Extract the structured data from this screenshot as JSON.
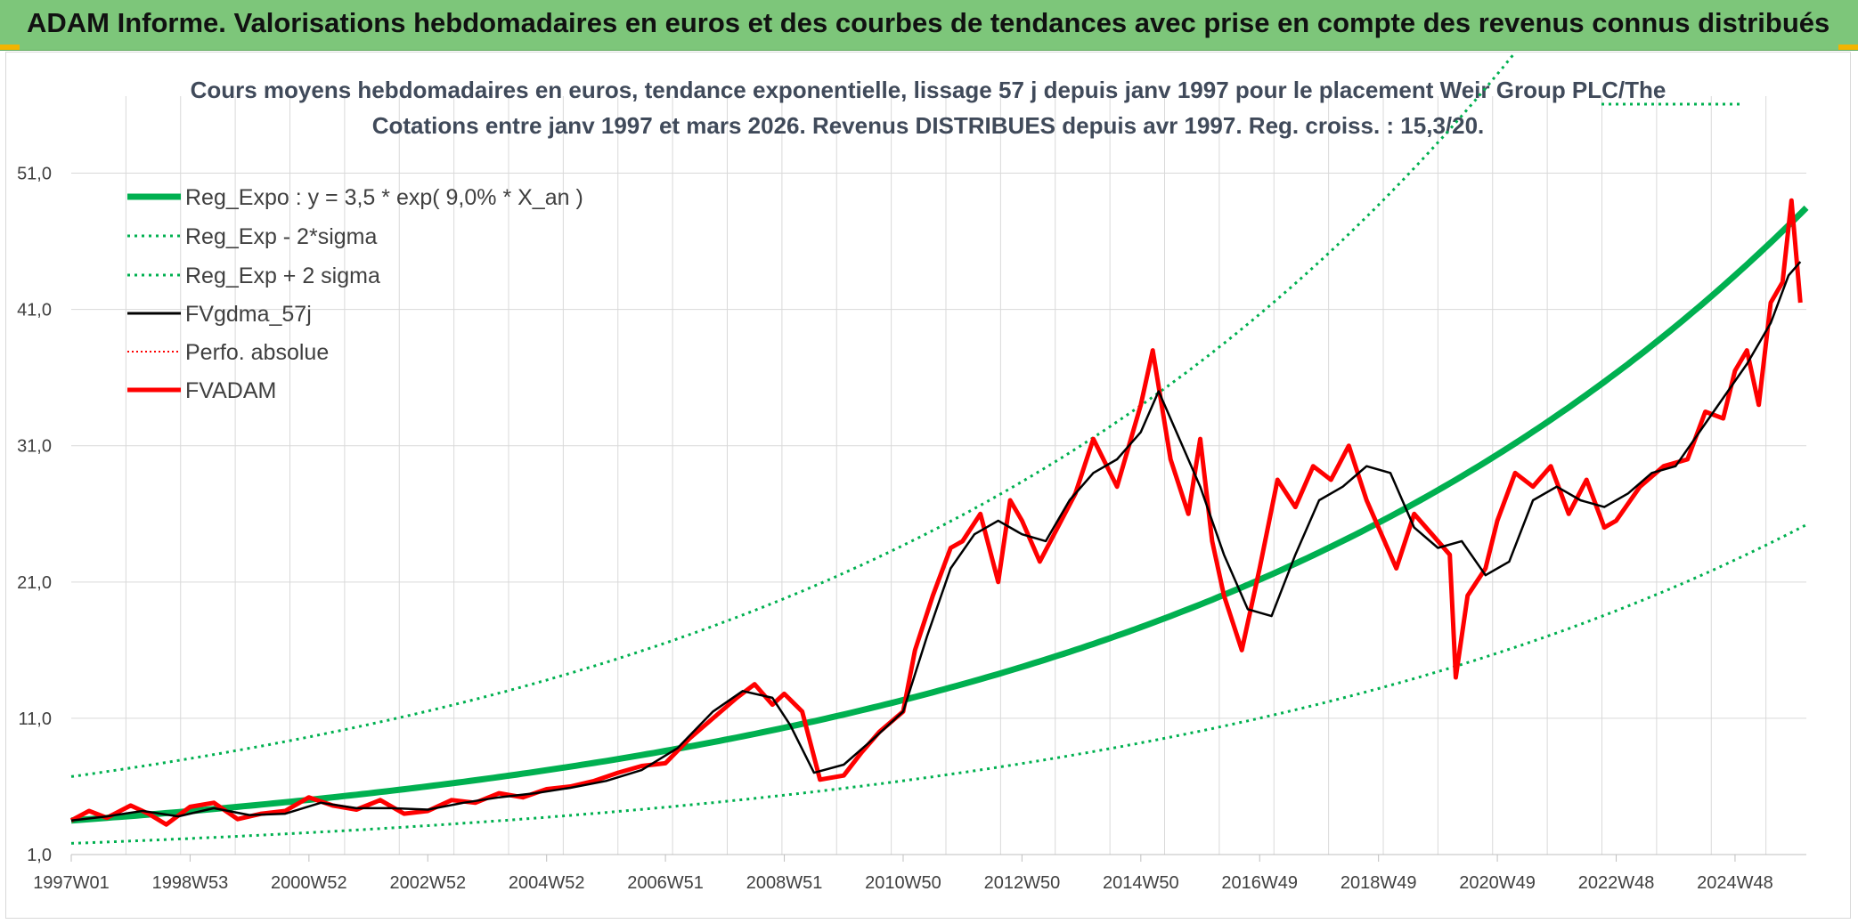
{
  "banner": {
    "title": "ADAM Informe. Valorisations hebdomadaires en euros et des courbes de tendances avec prise en compte des revenus connus distribués"
  },
  "colors": {
    "banner": "#7dc67a",
    "reg_green": "#00b050",
    "series_red": "#ff0000",
    "series_black": "#000000",
    "grid": "#d9d9d9"
  },
  "chart_data": {
    "type": "line",
    "title_line1": "Cours moyens hebdomadaires en euros, tendance exponentielle, lissage 57 j depuis janv 1997 pour le placement Weir Group PLC/The",
    "title_line2": "Cotations entre janv 1997 et mars 2026. Revenus DISTRIBUES depuis avr 1997. Reg. croiss. : 15,3/20.",
    "xlabel": "",
    "ylabel": "",
    "x_range": [
      1997.0,
      2026.2
    ],
    "ylim": [
      1.0,
      56.0
    ],
    "y_ticks": [
      "1,0",
      "11,0",
      "21,0",
      "31,0",
      "41,0",
      "51,0"
    ],
    "y_tick_values": [
      1,
      11,
      21,
      31,
      41,
      51
    ],
    "x_tick_labels": [
      "1997W01",
      "1998W53",
      "2000W52",
      "2002W52",
      "2004W52",
      "2006W51",
      "2008W51",
      "2010W50",
      "2012W50",
      "2014W50",
      "2016W49",
      "2018W49",
      "2020W49",
      "2022W48",
      "2024W48"
    ],
    "x_tick_years": [
      1997.0,
      1999.0,
      2001.0,
      2003.0,
      2005.0,
      2007.0,
      2009.0,
      2011.0,
      2013.0,
      2015.0,
      2017.0,
      2019.0,
      2021.0,
      2023.0,
      2025.0
    ],
    "legend": [
      {
        "label": "Reg_Expo : y = 3,5 * exp( 9,0% *  X_an )",
        "style": "solid-thick-green"
      },
      {
        "label": "Reg_Exp - 2*sigma",
        "style": "dotted-green"
      },
      {
        "label": "Reg_Exp + 2 sigma",
        "style": "dotted-green"
      },
      {
        "label": "FVgdma_57j",
        "style": "solid-black"
      },
      {
        "label": "Perfo. absolue",
        "style": "dotted-red"
      },
      {
        "label": "FVADAM",
        "style": "solid-thick-red"
      }
    ],
    "regression": {
      "a": 3.5,
      "b": 0.09,
      "lower_factor": 0.52,
      "upper_factor": 1.92
    },
    "series": [
      {
        "name": "FVADAM",
        "x": [
          1997.0,
          1997.3,
          1997.6,
          1998.0,
          1998.3,
          1998.6,
          1999.0,
          1999.4,
          1999.8,
          2000.2,
          2000.6,
          2001.0,
          2001.4,
          2001.8,
          2002.2,
          2002.6,
          2003.0,
          2003.4,
          2003.8,
          2004.2,
          2004.6,
          2005.0,
          2005.4,
          2005.8,
          2006.2,
          2006.6,
          2007.0,
          2007.4,
          2007.8,
          2008.2,
          2008.5,
          2008.8,
          2009.0,
          2009.3,
          2009.6,
          2010.0,
          2010.3,
          2010.6,
          2011.0,
          2011.2,
          2011.5,
          2011.8,
          2012.0,
          2012.3,
          2012.6,
          2012.8,
          2013.0,
          2013.3,
          2013.6,
          2013.9,
          2014.2,
          2014.6,
          2014.8,
          2015.0,
          2015.2,
          2015.5,
          2015.8,
          2016.0,
          2016.2,
          2016.4,
          2016.7,
          2017.0,
          2017.3,
          2017.6,
          2017.9,
          2018.2,
          2018.5,
          2018.8,
          2019.0,
          2019.3,
          2019.6,
          2019.9,
          2020.2,
          2020.3,
          2020.5,
          2020.8,
          2021.0,
          2021.3,
          2021.6,
          2021.9,
          2022.2,
          2022.5,
          2022.8,
          2023.0,
          2023.4,
          2023.8,
          2024.2,
          2024.5,
          2024.8,
          2025.0,
          2025.2,
          2025.4,
          2025.6,
          2025.8,
          2025.95,
          2026.1
        ],
        "values": [
          3.5,
          4.2,
          3.7,
          4.6,
          4.0,
          3.2,
          4.5,
          4.8,
          3.6,
          4.0,
          4.2,
          5.2,
          4.6,
          4.3,
          5.0,
          4.0,
          4.2,
          5.0,
          4.8,
          5.5,
          5.2,
          5.8,
          6.0,
          6.4,
          7.0,
          7.5,
          7.7,
          9.5,
          11.0,
          12.5,
          13.5,
          12.0,
          12.8,
          11.5,
          6.5,
          6.8,
          8.5,
          10.0,
          11.5,
          16.0,
          20.0,
          23.5,
          24.0,
          26.0,
          21.0,
          27.0,
          25.5,
          22.5,
          25.0,
          27.5,
          31.5,
          28.0,
          31.0,
          34.0,
          38.0,
          30.0,
          26.0,
          31.5,
          24.0,
          20.0,
          16.0,
          22.0,
          28.5,
          26.5,
          29.5,
          28.5,
          31.0,
          27.0,
          25.0,
          22.0,
          26.0,
          24.5,
          23.0,
          14.0,
          20.0,
          22.0,
          25.5,
          29.0,
          28.0,
          29.5,
          26.0,
          28.5,
          25.0,
          25.5,
          28.0,
          29.5,
          30.0,
          33.5,
          33.0,
          36.5,
          38.0,
          34.0,
          41.5,
          43.0,
          49.0,
          41.5
        ]
      },
      {
        "name": "FVgdma_57j",
        "x": [
          1997.0,
          1997.6,
          1998.2,
          1998.8,
          1999.4,
          2000.0,
          2000.6,
          2001.2,
          2001.8,
          2002.4,
          2003.0,
          2003.6,
          2004.2,
          2004.8,
          2005.4,
          2006.0,
          2006.6,
          2007.2,
          2007.8,
          2008.3,
          2008.8,
          2009.1,
          2009.5,
          2010.0,
          2010.5,
          2011.0,
          2011.4,
          2011.8,
          2012.2,
          2012.6,
          2013.0,
          2013.4,
          2013.8,
          2014.2,
          2014.6,
          2015.0,
          2015.3,
          2015.6,
          2016.0,
          2016.4,
          2016.8,
          2017.2,
          2017.6,
          2018.0,
          2018.4,
          2018.8,
          2019.2,
          2019.6,
          2020.0,
          2020.4,
          2020.8,
          2021.2,
          2021.6,
          2022.0,
          2022.4,
          2022.8,
          2023.2,
          2023.6,
          2024.0,
          2024.4,
          2024.8,
          2025.2,
          2025.6,
          2025.9,
          2026.1
        ],
        "values": [
          3.5,
          3.8,
          4.2,
          3.8,
          4.4,
          3.9,
          4.0,
          4.8,
          4.4,
          4.4,
          4.3,
          4.8,
          5.2,
          5.5,
          5.9,
          6.4,
          7.2,
          8.8,
          11.5,
          13.0,
          12.5,
          10.5,
          7.0,
          7.6,
          9.5,
          11.5,
          17.0,
          22.0,
          24.5,
          25.5,
          24.5,
          24.0,
          27.0,
          29.0,
          30.0,
          32.0,
          35.0,
          32.0,
          28.0,
          23.0,
          19.0,
          18.5,
          23.0,
          27.0,
          28.0,
          29.5,
          29.0,
          25.0,
          23.5,
          24.0,
          21.5,
          22.5,
          27.0,
          28.0,
          27.0,
          26.5,
          27.5,
          29.0,
          29.5,
          32.0,
          34.5,
          37.0,
          40.0,
          43.5,
          44.5
        ]
      }
    ]
  }
}
